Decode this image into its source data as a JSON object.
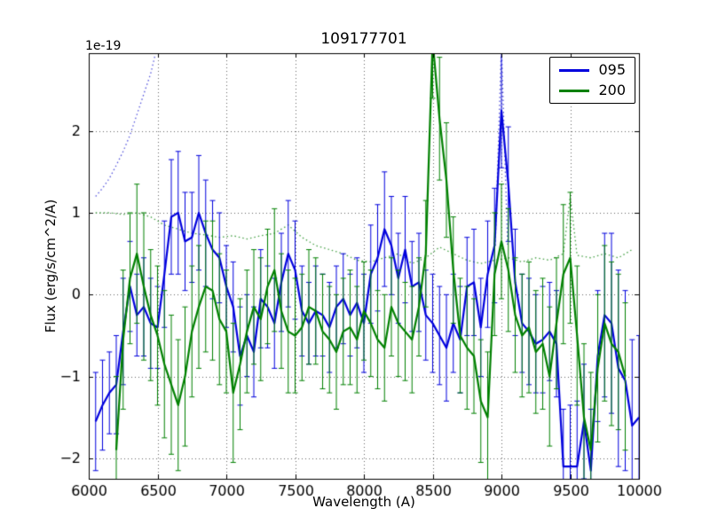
{
  "figure": {
    "title": "109177701",
    "offset_text": "1e-19",
    "xlabel": "Wavelength (A)",
    "ylabel": "Flux (erg/s/cm^2/A)",
    "background_color": "#ffffff",
    "grid_color": "#666666",
    "axis_color": "#000000"
  },
  "chart_data": {
    "type": "line",
    "title": "109177701",
    "xlabel": "Wavelength (A)",
    "ylabel": "Flux (erg/s/cm^2/A)",
    "y_offset_label": "1e-19",
    "xlim": [
      6000,
      10000
    ],
    "ylim": [
      -2.25,
      2.95
    ],
    "xticks": [
      6000,
      6500,
      7000,
      7500,
      8000,
      8500,
      9000,
      9500,
      10000
    ],
    "yticks": [
      -2,
      -1,
      0,
      1,
      2
    ],
    "grid": true,
    "legend_position": "upper right",
    "series": [
      {
        "name": "095",
        "color": "#0000dd",
        "x0": 6050,
        "dx": 50,
        "values": [
          -1.55,
          -1.35,
          -1.2,
          -1.1,
          -0.45,
          0.1,
          -0.25,
          -0.15,
          -0.35,
          -0.4,
          0.25,
          0.95,
          1.0,
          0.65,
          0.7,
          1.0,
          0.75,
          0.55,
          0.45,
          0.1,
          -0.15,
          -0.75,
          -0.5,
          -0.7,
          -0.05,
          -0.15,
          -0.35,
          0.15,
          0.5,
          0.3,
          -0.2,
          -0.35,
          -0.2,
          -0.25,
          -0.4,
          -0.15,
          -0.05,
          -0.25,
          -0.1,
          -0.35,
          0.25,
          0.45,
          0.8,
          0.6,
          0.2,
          0.55,
          0.1,
          0.15,
          -0.25,
          -0.35,
          -0.5,
          -0.65,
          -0.35,
          -0.55,
          0.1,
          0.15,
          -0.4,
          0.25,
          0.6,
          2.25,
          1.35,
          0.15,
          -0.35,
          -0.45,
          -0.6,
          -0.55,
          -0.45,
          -0.6,
          -2.1,
          -2.1,
          -2.1,
          -1.55,
          -2.15,
          -0.75,
          -0.25,
          -0.35,
          -0.9,
          -1.05,
          -1.6,
          -1.5
        ],
        "yerr": [
          0.6,
          0.55,
          0.5,
          0.6,
          0.65,
          0.55,
          0.5,
          0.6,
          0.55,
          0.5,
          0.65,
          0.7,
          0.75,
          0.6,
          0.55,
          0.7,
          0.65,
          0.6,
          0.55,
          0.5,
          0.55,
          0.6,
          0.5,
          0.55,
          0.6,
          0.5,
          0.55,
          0.6,
          0.65,
          0.6,
          0.55,
          0.5,
          0.55,
          0.5,
          0.55,
          0.5,
          0.55,
          0.5,
          0.55,
          0.6,
          0.6,
          0.65,
          0.7,
          0.6,
          0.55,
          0.65,
          0.55,
          0.6,
          0.55,
          0.6,
          0.6,
          0.65,
          0.6,
          0.65,
          0.6,
          0.65,
          0.6,
          0.65,
          0.7,
          0.7,
          0.7,
          0.65,
          0.6,
          0.65,
          0.6,
          0.65,
          0.6,
          0.65,
          0.7,
          0.75,
          0.8,
          0.7,
          0.75,
          0.8,
          1.0,
          1.1,
          1.2,
          1.1,
          1.05,
          1.0
        ]
      },
      {
        "name": "200",
        "color": "#008000",
        "x0": 6200,
        "dx": 50,
        "values": [
          -1.9,
          -0.55,
          0.2,
          0.5,
          0.1,
          -0.25,
          -0.5,
          -0.85,
          -1.1,
          -1.35,
          -1.0,
          -0.45,
          -0.15,
          0.1,
          0.05,
          -0.3,
          -0.45,
          -1.2,
          -0.85,
          -0.45,
          -0.15,
          -0.3,
          0.1,
          0.3,
          -0.2,
          -0.45,
          -0.5,
          -0.4,
          -0.15,
          -0.2,
          -0.45,
          -0.55,
          -0.7,
          -0.45,
          -0.4,
          -0.55,
          -0.2,
          -0.35,
          -0.55,
          -0.65,
          -0.15,
          -0.35,
          -0.45,
          -0.55,
          -0.15,
          0.5,
          3.1,
          2.15,
          1.4,
          0.3,
          -0.5,
          -0.65,
          -0.75,
          -1.3,
          -1.5,
          0.25,
          0.65,
          0.3,
          -0.25,
          -0.5,
          -0.4,
          -0.7,
          -0.6,
          -1.0,
          -0.35,
          0.25,
          0.45,
          -0.5,
          -1.5,
          -1.9,
          -0.9,
          -0.35,
          -0.6,
          -0.7,
          -1.0
        ],
        "yerr": [
          0.9,
          0.85,
          0.8,
          0.85,
          0.9,
          0.8,
          0.85,
          0.9,
          0.85,
          0.8,
          0.85,
          0.8,
          0.75,
          0.8,
          0.85,
          0.8,
          0.75,
          0.85,
          0.8,
          0.75,
          0.7,
          0.75,
          0.7,
          0.75,
          0.7,
          0.75,
          0.7,
          0.65,
          0.7,
          0.65,
          0.7,
          0.65,
          0.7,
          0.65,
          0.7,
          0.65,
          0.6,
          0.65,
          0.6,
          0.65,
          0.6,
          0.65,
          0.6,
          0.65,
          0.6,
          0.65,
          0.7,
          0.75,
          0.7,
          0.65,
          0.7,
          0.75,
          0.7,
          0.75,
          0.8,
          0.75,
          0.7,
          0.75,
          0.7,
          0.75,
          0.8,
          0.75,
          0.8,
          0.85,
          0.8,
          0.85,
          0.8,
          0.85,
          0.9,
          0.95,
          0.9,
          0.95,
          1.0,
          0.95,
          0.9
        ]
      }
    ],
    "noise_curves": [
      {
        "name": "noise-095-left",
        "color": "#5555dd",
        "x": [
          6050,
          6100,
          6150,
          6200,
          6250,
          6300,
          6350,
          6400,
          6450,
          6500
        ],
        "y": [
          1.2,
          1.3,
          1.42,
          1.58,
          1.75,
          1.95,
          2.2,
          2.45,
          2.7,
          3.05
        ]
      },
      {
        "name": "noise-095-line",
        "color": "#5555dd",
        "x": [
          8955,
          9000,
          9045
        ],
        "y": [
          0.6,
          3.05,
          0.6
        ]
      },
      {
        "name": "noise-200",
        "color": "#44a044",
        "x": [
          6050,
          6150,
          6250,
          6350,
          6450,
          6550,
          6650,
          6750,
          6850,
          6950,
          7050,
          7150,
          7250,
          7350,
          7450,
          7550,
          7650,
          7750,
          7850,
          7950,
          8050,
          8150,
          8250,
          8350,
          8450,
          8550,
          8650,
          8750,
          8850,
          8950,
          9050,
          9150,
          9250,
          9350,
          9450,
          9500,
          9550,
          9650,
          9750,
          9850,
          9950
        ],
        "y": [
          1.0,
          1.0,
          0.98,
          1.0,
          0.95,
          0.85,
          0.8,
          0.75,
          0.73,
          0.7,
          0.72,
          0.68,
          0.72,
          0.75,
          0.85,
          0.7,
          0.6,
          0.55,
          0.5,
          0.42,
          0.4,
          0.45,
          0.5,
          0.38,
          0.45,
          0.58,
          0.5,
          0.42,
          0.38,
          0.42,
          0.45,
          0.4,
          0.45,
          0.42,
          0.5,
          1.2,
          0.48,
          0.45,
          0.5,
          0.45,
          0.55
        ]
      }
    ]
  }
}
